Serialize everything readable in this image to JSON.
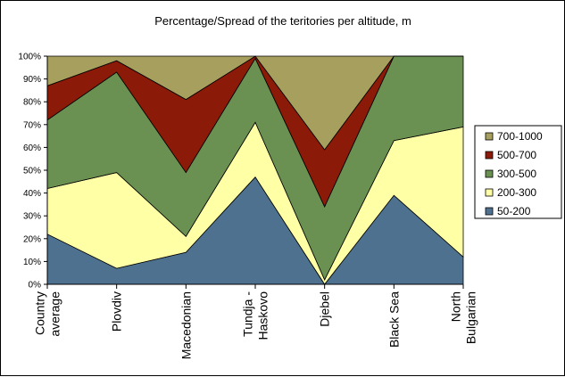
{
  "chart_data": {
    "type": "area",
    "stacked": true,
    "percent": true,
    "title": "Percentage/Spread of the teritories per altitude, m",
    "categories": [
      "Country average",
      "Plovdiv",
      "Macedonian",
      "Tundja - Haskovo",
      "Djebel",
      "Black Sea",
      "North Bulgarian"
    ],
    "category_lines": [
      [
        "Country",
        "average"
      ],
      [
        "Plovdiv"
      ],
      [
        "Macedonian"
      ],
      [
        "Tundja -",
        "Haskovo"
      ],
      [
        "Djebel"
      ],
      [
        "Black Sea"
      ],
      [
        "North",
        "Bulgarian"
      ]
    ],
    "ylim": [
      0,
      100
    ],
    "yticks": [
      "0%",
      "10%",
      "20%",
      "30%",
      "40%",
      "50%",
      "60%",
      "70%",
      "80%",
      "90%",
      "100%"
    ],
    "legend_position": "right",
    "series": [
      {
        "name": "50-200",
        "color": "#4f7190",
        "values": [
          22,
          7,
          14,
          47,
          0,
          39,
          12
        ]
      },
      {
        "name": "200-300",
        "color": "#ffffa6",
        "values": [
          20,
          42,
          7,
          24,
          2,
          24,
          57
        ]
      },
      {
        "name": "300-500",
        "color": "#6b9152",
        "values": [
          30,
          44,
          28,
          28,
          32,
          37,
          31
        ]
      },
      {
        "name": "500-700",
        "color": "#8b1a08",
        "values": [
          15,
          5,
          32,
          1,
          25,
          0,
          0
        ]
      },
      {
        "name": "700-1000",
        "color": "#a79f5e",
        "values": [
          13,
          2,
          19,
          0,
          41,
          0,
          0
        ]
      }
    ]
  }
}
